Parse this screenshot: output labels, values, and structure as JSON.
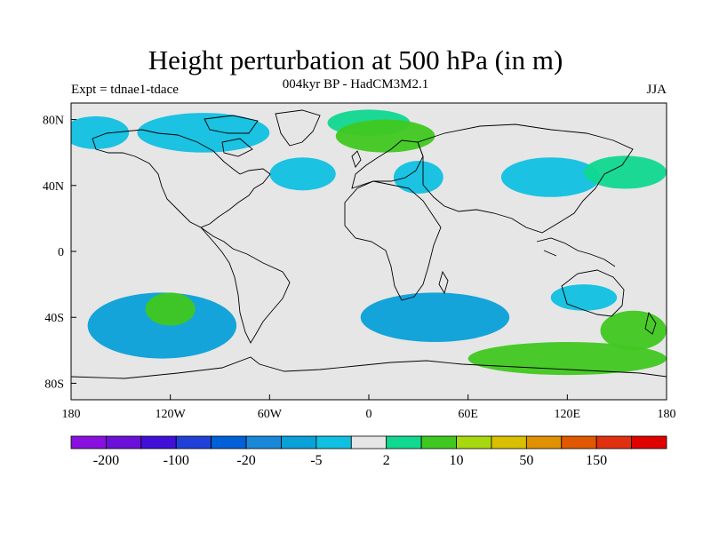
{
  "title": "Height perturbation at 500 hPa (in m)",
  "subtitle": "004kyr BP - HadCM3M2.1",
  "experiment": "Expt = tdnae1-tdace",
  "season": "JJA",
  "chart_data": {
    "type": "heatmap",
    "projection": "cylindrical-equidistant",
    "variable": "Height perturbation at 500 hPa",
    "units": "m",
    "xlim": [
      -180,
      180
    ],
    "ylim": [
      -90,
      90
    ],
    "lat_ticks": [
      {
        "value": 80,
        "label": "80N"
      },
      {
        "value": 40,
        "label": "40N"
      },
      {
        "value": 0,
        "label": "0"
      },
      {
        "value": -40,
        "label": "40S"
      },
      {
        "value": -80,
        "label": "80S"
      }
    ],
    "lon_ticks": [
      {
        "value": -180,
        "label": "180"
      },
      {
        "value": -120,
        "label": "120W"
      },
      {
        "value": -60,
        "label": "60W"
      },
      {
        "value": 0,
        "label": "0"
      },
      {
        "value": 60,
        "label": "60E"
      },
      {
        "value": 120,
        "label": "120E"
      },
      {
        "value": 180,
        "label": "180"
      }
    ],
    "colorbar": {
      "colors": [
        "#8a10e0",
        "#6a10d8",
        "#4010d8",
        "#2040d8",
        "#0060d8",
        "#1a88d8",
        "#0aa0d8",
        "#10c0e0",
        "#e6e6e6",
        "#10d890",
        "#40c820",
        "#a8d810",
        "#d8c000",
        "#e09000",
        "#e05800",
        "#e03010",
        "#e00000"
      ],
      "labels": [
        {
          "index": 1,
          "text": "-200"
        },
        {
          "index": 3,
          "text": "-100"
        },
        {
          "index": 5,
          "text": "-20"
        },
        {
          "index": 7,
          "text": "-5"
        },
        {
          "index": 9,
          "text": "2"
        },
        {
          "index": 11,
          "text": "10"
        },
        {
          "index": 13,
          "text": "50"
        },
        {
          "index": 15,
          "text": "150"
        }
      ]
    },
    "anomaly_regions": [
      {
        "name": "arctic-canada-negative",
        "lon": -100,
        "lat": 72,
        "rx": 40,
        "ry": 12,
        "level": "-5"
      },
      {
        "name": "north-pacific-negative",
        "lon": -165,
        "lat": 72,
        "rx": 20,
        "ry": 10,
        "level": "-5"
      },
      {
        "name": "north-atlantic-negative",
        "lon": -40,
        "lat": 47,
        "rx": 20,
        "ry": 10,
        "level": "-5"
      },
      {
        "name": "greenland-positive",
        "lon": 0,
        "lat": 78,
        "rx": 25,
        "ry": 8,
        "level": "2"
      },
      {
        "name": "scandinavia-positive",
        "lon": 10,
        "lat": 70,
        "rx": 30,
        "ry": 10,
        "level": "10"
      },
      {
        "name": "europe-negative",
        "lon": 30,
        "lat": 45,
        "rx": 15,
        "ry": 10,
        "level": "-5"
      },
      {
        "name": "siberia-negative",
        "lon": 110,
        "lat": 45,
        "rx": 30,
        "ry": 12,
        "level": "-5"
      },
      {
        "name": "east-asia-positive",
        "lon": 155,
        "lat": 48,
        "rx": 25,
        "ry": 10,
        "level": "2"
      },
      {
        "name": "south-pacific-negative",
        "lon": -125,
        "lat": -45,
        "rx": 45,
        "ry": 20,
        "level": "-20"
      },
      {
        "name": "south-pacific-positive",
        "lon": -120,
        "lat": -35,
        "rx": 15,
        "ry": 10,
        "level": "10"
      },
      {
        "name": "south-atlantic-negative",
        "lon": 40,
        "lat": -40,
        "rx": 45,
        "ry": 15,
        "level": "-20"
      },
      {
        "name": "australia-negative",
        "lon": 130,
        "lat": -28,
        "rx": 20,
        "ry": 8,
        "level": "-5"
      },
      {
        "name": "southern-ocean-positive",
        "lon": 120,
        "lat": -65,
        "rx": 60,
        "ry": 10,
        "level": "10"
      },
      {
        "name": "tasman-positive",
        "lon": 160,
        "lat": -48,
        "rx": 20,
        "ry": 12,
        "level": "10"
      }
    ]
  }
}
